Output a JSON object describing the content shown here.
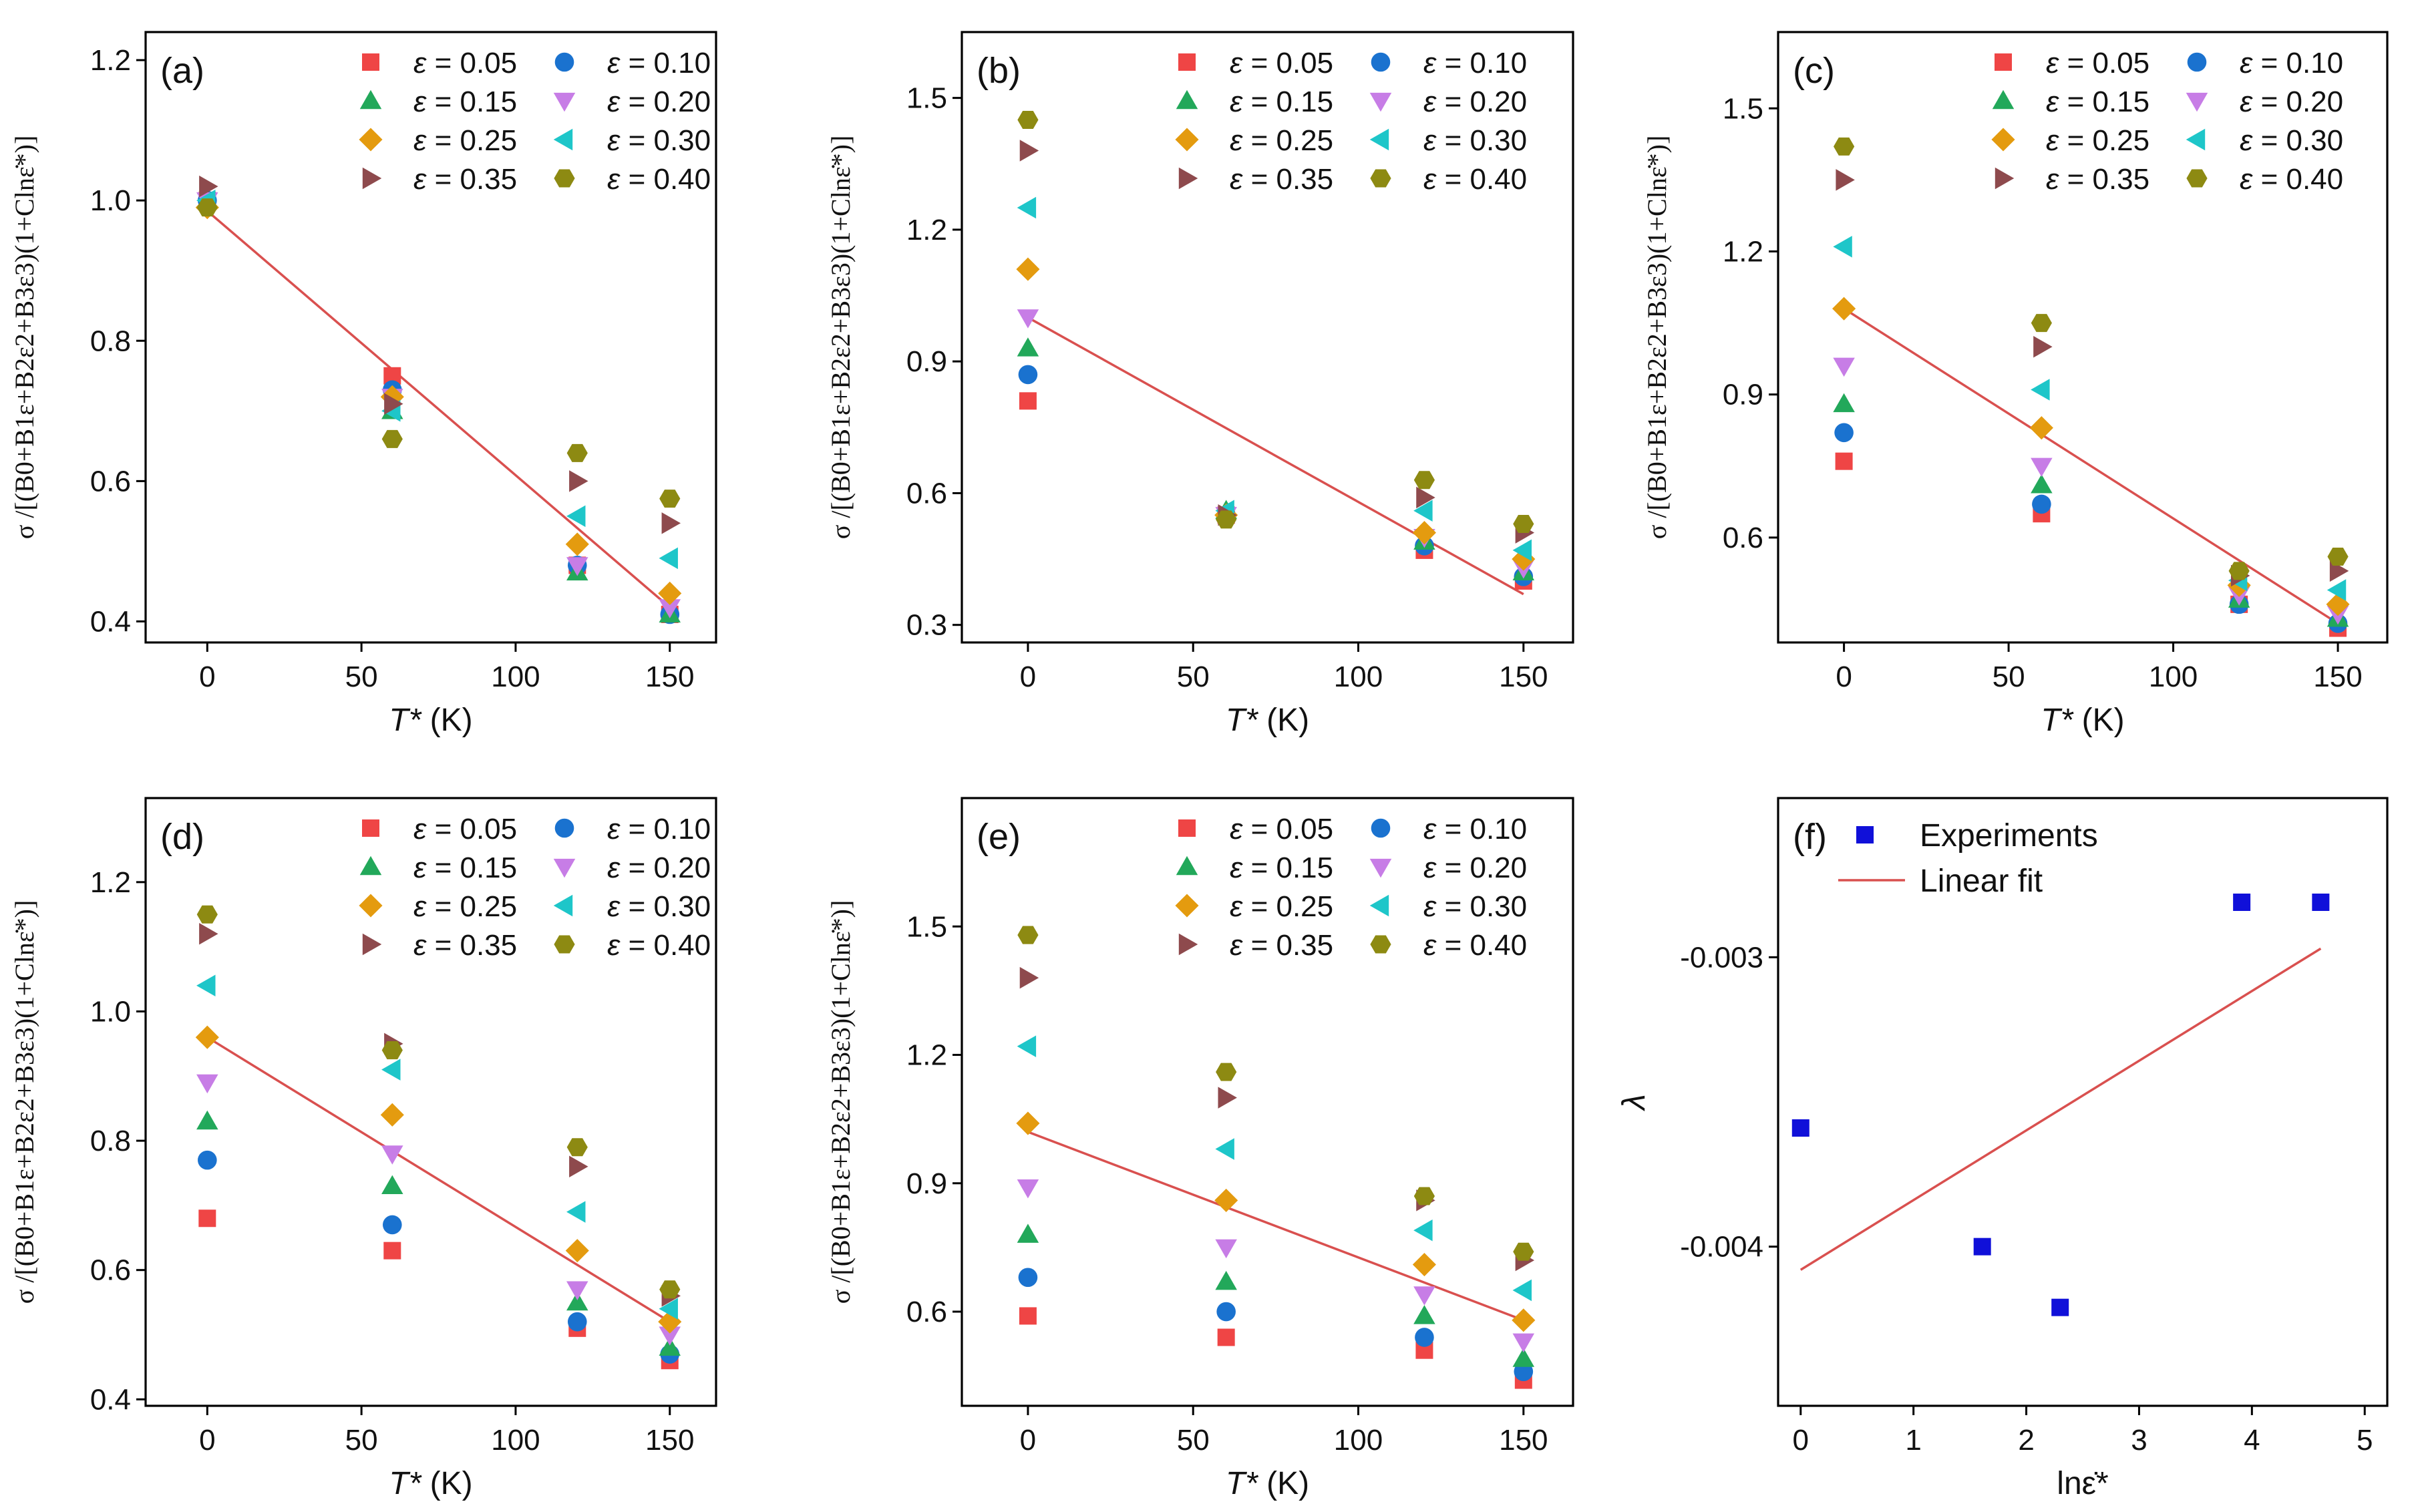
{
  "figure_title": "",
  "chart_data": [
    {
      "type": "scatter",
      "panel": "(a)",
      "xlabel": "T* (K)",
      "ylabel": "σ /[(B0+B1ε+B2ε2+B3ε3)(1+Clnε̇*)]",
      "xlim": [
        -20,
        165
      ],
      "ylim": [
        0.37,
        1.24
      ],
      "xticks": [
        0,
        50,
        100,
        150
      ],
      "yticks": [
        0.4,
        0.6,
        0.8,
        1.0,
        1.2
      ],
      "ytick_labels": [
        "0.4",
        "0.6",
        "0.8",
        "1.0",
        "1.2"
      ],
      "x": [
        0,
        60,
        120,
        150
      ],
      "series": [
        {
          "name": "ε = 0.05",
          "values": [
            1.0,
            0.75,
            0.48,
            0.41
          ]
        },
        {
          "name": "ε = 0.10",
          "values": [
            1.0,
            0.73,
            0.48,
            0.41
          ]
        },
        {
          "name": "ε = 0.15",
          "values": [
            1.0,
            0.7,
            0.47,
            0.41
          ]
        },
        {
          "name": "ε = 0.20",
          "values": [
            1.0,
            0.72,
            0.48,
            0.42
          ]
        },
        {
          "name": "ε = 0.25",
          "values": [
            0.99,
            0.72,
            0.51,
            0.44
          ]
        },
        {
          "name": "ε = 0.30",
          "values": [
            1.0,
            0.7,
            0.55,
            0.49
          ]
        },
        {
          "name": "ε = 0.35",
          "values": [
            1.02,
            0.71,
            0.6,
            0.54
          ]
        },
        {
          "name": "ε = 0.40",
          "values": [
            0.99,
            0.66,
            0.64,
            0.575
          ]
        }
      ],
      "fit": {
        "x": [
          0,
          150
        ],
        "y": [
          0.985,
          0.42
        ]
      }
    },
    {
      "type": "scatter",
      "panel": "(b)",
      "xlabel": "T* (K)",
      "ylabel": "σ /[(B0+B1ε+B2ε2+B3ε3)(1+Clnε̇*)]",
      "xlim": [
        -20,
        165
      ],
      "ylim": [
        0.26,
        1.65
      ],
      "xticks": [
        0,
        50,
        100,
        150
      ],
      "yticks": [
        0.3,
        0.6,
        0.9,
        1.2,
        1.5
      ],
      "ytick_labels": [
        "0.3",
        "0.6",
        "0.9",
        "1.2",
        "1.5"
      ],
      "x": [
        0,
        60,
        120,
        150
      ],
      "series": [
        {
          "name": "ε = 0.05",
          "values": [
            0.81,
            0.55,
            0.47,
            0.4
          ]
        },
        {
          "name": "ε = 0.10",
          "values": [
            0.87,
            0.55,
            0.48,
            0.41
          ]
        },
        {
          "name": "ε = 0.15",
          "values": [
            0.93,
            0.56,
            0.49,
            0.42
          ]
        },
        {
          "name": "ε = 0.20",
          "values": [
            1.0,
            0.55,
            0.5,
            0.43
          ]
        },
        {
          "name": "ε = 0.25",
          "values": [
            1.11,
            0.55,
            0.51,
            0.45
          ]
        },
        {
          "name": "ε = 0.30",
          "values": [
            1.25,
            0.56,
            0.56,
            0.47
          ]
        },
        {
          "name": "ε = 0.35",
          "values": [
            1.38,
            0.55,
            0.59,
            0.51
          ]
        },
        {
          "name": "ε = 0.40",
          "values": [
            1.45,
            0.54,
            0.63,
            0.53
          ]
        }
      ],
      "fit": {
        "x": [
          0,
          150
        ],
        "y": [
          1.0,
          0.37
        ]
      }
    },
    {
      "type": "scatter",
      "panel": "(c)",
      "xlabel": "T* (K)",
      "ylabel": "σ /[(B0+B1ε+B2ε2+B3ε3)(1+Clnε̇*)]",
      "xlim": [
        -20,
        165
      ],
      "ylim": [
        0.38,
        1.66
      ],
      "xticks": [
        0,
        50,
        100,
        150
      ],
      "yticks": [
        0.6,
        0.9,
        1.2,
        1.5
      ],
      "ytick_labels": [
        "0.6",
        "0.9",
        "1.2",
        "1.5"
      ],
      "x": [
        0,
        60,
        120,
        150
      ],
      "series": [
        {
          "name": "ε = 0.05",
          "values": [
            0.76,
            0.65,
            0.46,
            0.41
          ]
        },
        {
          "name": "ε = 0.10",
          "values": [
            0.82,
            0.67,
            0.46,
            0.42
          ]
        },
        {
          "name": "ε = 0.15",
          "values": [
            0.88,
            0.71,
            0.47,
            0.43
          ]
        },
        {
          "name": "ε = 0.20",
          "values": [
            0.96,
            0.75,
            0.48,
            0.44
          ]
        },
        {
          "name": "ε = 0.25",
          "values": [
            1.08,
            0.83,
            0.5,
            0.46
          ]
        },
        {
          "name": "ε = 0.30",
          "values": [
            1.21,
            0.91,
            0.51,
            0.49
          ]
        },
        {
          "name": "ε = 0.35",
          "values": [
            1.35,
            1.0,
            0.52,
            0.53
          ]
        },
        {
          "name": "ε = 0.40",
          "values": [
            1.42,
            1.05,
            0.53,
            0.56
          ]
        }
      ],
      "fit": {
        "x": [
          0,
          150
        ],
        "y": [
          1.08,
          0.42
        ]
      }
    },
    {
      "type": "scatter",
      "panel": "(d)",
      "xlabel": "T* (K)",
      "ylabel": "σ /[(B0+B1ε+B2ε2+B3ε3)(1+Clnε̇*)]",
      "xlim": [
        -20,
        165
      ],
      "ylim": [
        0.39,
        1.33
      ],
      "xticks": [
        0,
        50,
        100,
        150
      ],
      "yticks": [
        0.4,
        0.6,
        0.8,
        1.0,
        1.2
      ],
      "ytick_labels": [
        "0.4",
        "0.6",
        "0.8",
        "1.0",
        "1.2"
      ],
      "x": [
        0,
        60,
        120,
        150
      ],
      "series": [
        {
          "name": "ε = 0.05",
          "values": [
            0.68,
            0.63,
            0.51,
            0.46
          ]
        },
        {
          "name": "ε = 0.10",
          "values": [
            0.77,
            0.67,
            0.52,
            0.47
          ]
        },
        {
          "name": "ε = 0.15",
          "values": [
            0.83,
            0.73,
            0.55,
            0.48
          ]
        },
        {
          "name": "ε = 0.20",
          "values": [
            0.89,
            0.78,
            0.57,
            0.5
          ]
        },
        {
          "name": "ε = 0.25",
          "values": [
            0.96,
            0.84,
            0.63,
            0.52
          ]
        },
        {
          "name": "ε = 0.30",
          "values": [
            1.04,
            0.91,
            0.69,
            0.54
          ]
        },
        {
          "name": "ε = 0.35",
          "values": [
            1.12,
            0.95,
            0.76,
            0.56
          ]
        },
        {
          "name": "ε = 0.40",
          "values": [
            1.15,
            0.94,
            0.79,
            0.57
          ]
        }
      ],
      "fit": {
        "x": [
          0,
          150
        ],
        "y": [
          0.96,
          0.52
        ]
      }
    },
    {
      "type": "scatter",
      "panel": "(e)",
      "xlabel": "T* (K)",
      "ylabel": "σ /[(B0+B1ε+B2ε2+B3ε3)(1+Clnε̇*)]",
      "xlim": [
        -20,
        165
      ],
      "ylim": [
        0.38,
        1.8
      ],
      "xticks": [
        0,
        50,
        100,
        150
      ],
      "yticks": [
        0.6,
        0.9,
        1.2,
        1.5
      ],
      "ytick_labels": [
        "0.6",
        "0.9",
        "1.2",
        "1.5"
      ],
      "x": [
        0,
        60,
        120,
        150
      ],
      "series": [
        {
          "name": "ε = 0.05",
          "values": [
            0.59,
            0.54,
            0.51,
            0.44
          ]
        },
        {
          "name": "ε = 0.10",
          "values": [
            0.68,
            0.6,
            0.54,
            0.46
          ]
        },
        {
          "name": "ε = 0.15",
          "values": [
            0.78,
            0.67,
            0.59,
            0.49
          ]
        },
        {
          "name": "ε = 0.20",
          "values": [
            0.89,
            0.75,
            0.64,
            0.53
          ]
        },
        {
          "name": "ε = 0.25",
          "values": [
            1.04,
            0.86,
            0.71,
            0.58
          ]
        },
        {
          "name": "ε = 0.30",
          "values": [
            1.22,
            0.98,
            0.79,
            0.65
          ]
        },
        {
          "name": "ε = 0.35",
          "values": [
            1.38,
            1.1,
            0.86,
            0.72
          ]
        },
        {
          "name": "ε = 0.40",
          "values": [
            1.48,
            1.16,
            0.87,
            0.74
          ]
        }
      ],
      "fit": {
        "x": [
          0,
          150
        ],
        "y": [
          1.02,
          0.58
        ]
      }
    },
    {
      "type": "scatter",
      "panel": "(f)",
      "xlabel": "lnε̇*",
      "ylabel": "λ",
      "xlim": [
        -0.2,
        5.2
      ],
      "ylim": [
        -0.00455,
        -0.00245
      ],
      "xticks": [
        0,
        1,
        2,
        3,
        4,
        5
      ],
      "yticks": [
        -0.004,
        -0.003
      ],
      "ytick_labels": [
        "-0.004",
        "-0.003"
      ],
      "series": [
        {
          "name": "Experiments",
          "x": [
            0,
            1.61,
            2.3,
            3.91,
            4.61
          ],
          "values": [
            -0.00359,
            -0.004,
            -0.00421,
            -0.00281,
            -0.00281
          ]
        }
      ],
      "fit": {
        "name": "Linear fit",
        "x": [
          0,
          4.61
        ],
        "y": [
          -0.00408,
          -0.00297
        ]
      }
    }
  ],
  "legend": {
    "marker_colors": [
      "#ef4545",
      "#1a72cf",
      "#22a85a",
      "#c77de6",
      "#e49b0f",
      "#1ec6c9",
      "#8e4a4d",
      "#8d8a12"
    ],
    "marker_shapes": [
      "square",
      "circle",
      "triangle-up",
      "triangle-down",
      "diamond",
      "triangle-left",
      "triangle-right",
      "hexagon"
    ],
    "fit_color": "#d9504f",
    "experiment_color": "#1010d9"
  }
}
